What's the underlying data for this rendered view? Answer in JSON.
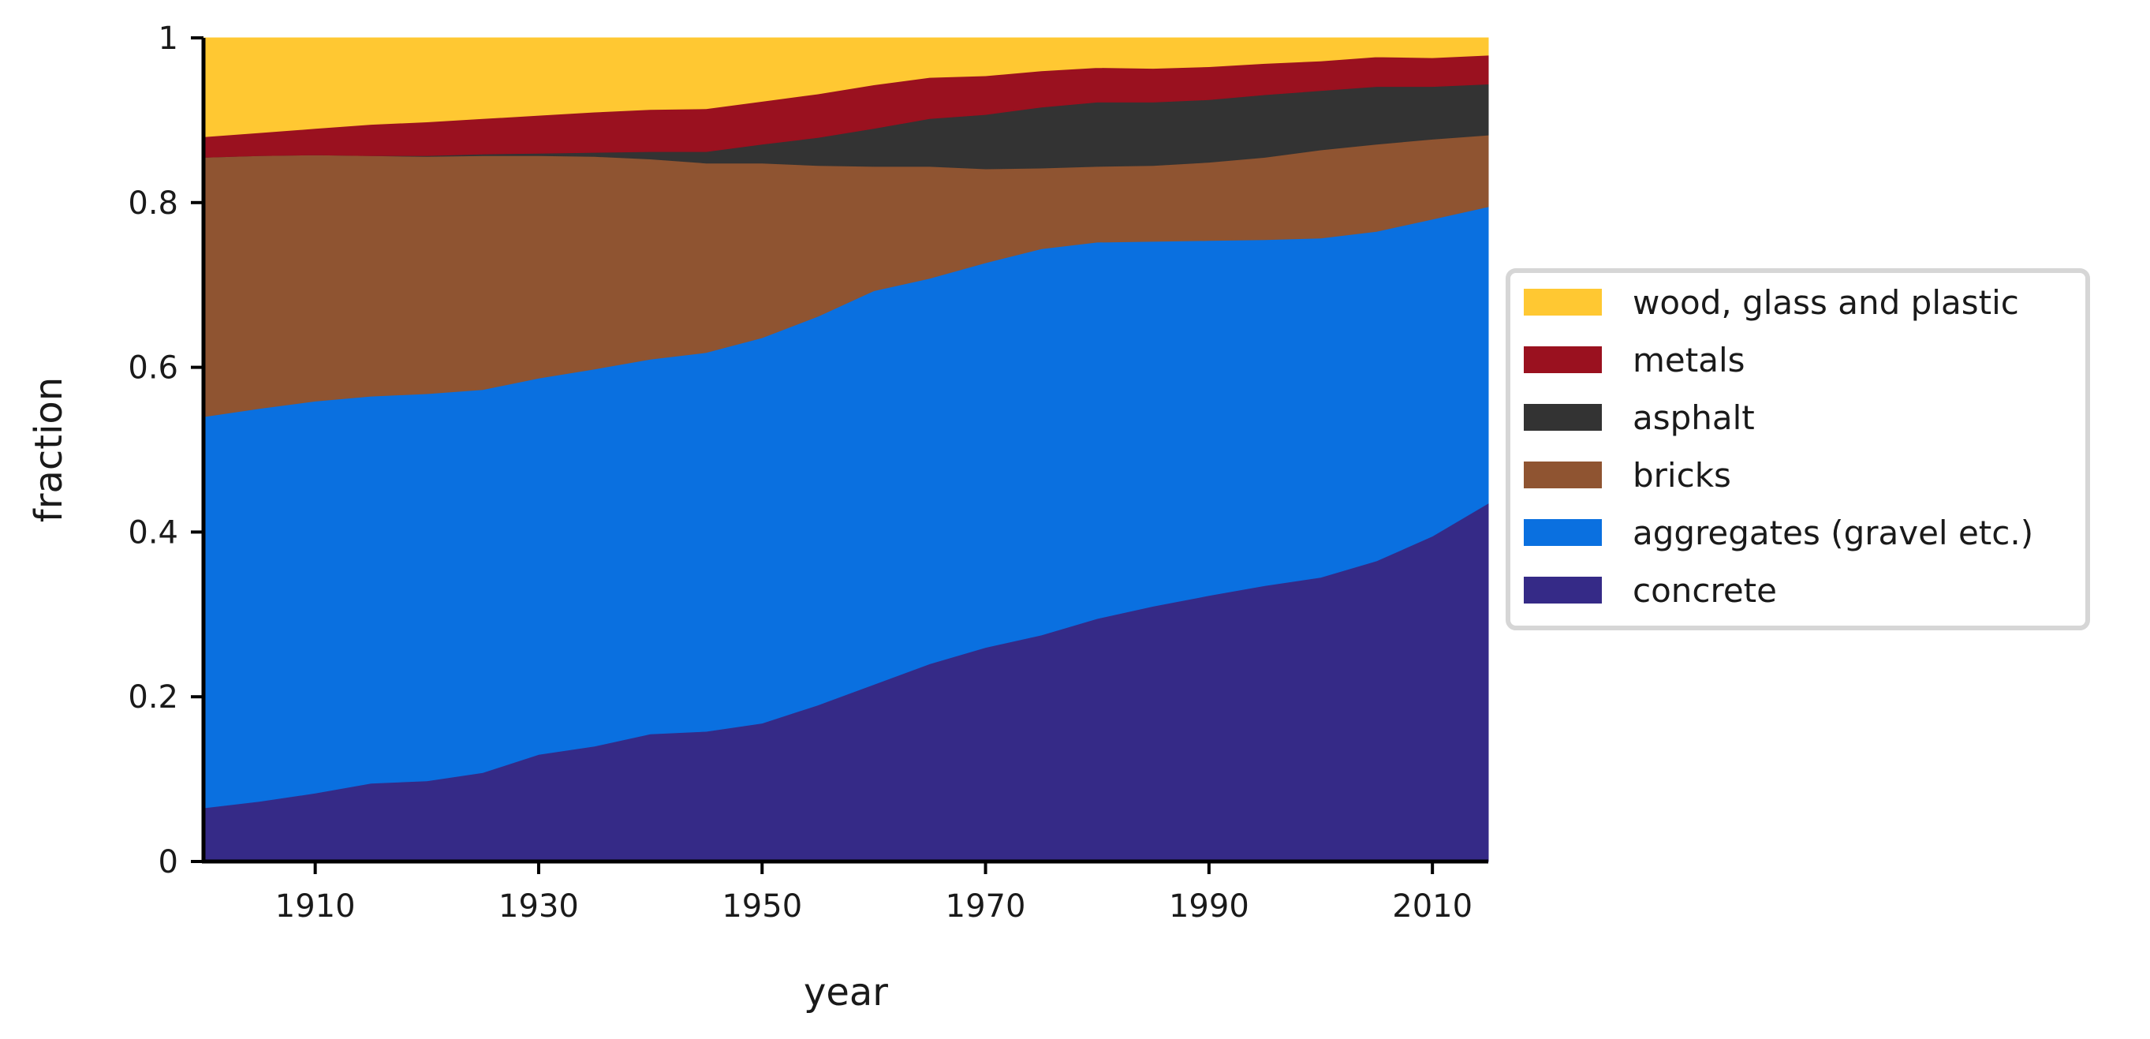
{
  "chart_data": {
    "type": "area",
    "stacked": true,
    "xlabel": "year",
    "ylabel": "fraction",
    "xlim": [
      1900,
      2015
    ],
    "ylim": [
      0,
      1
    ],
    "x_ticks": [
      1910,
      1930,
      1950,
      1970,
      1990,
      2010
    ],
    "y_ticks": [
      0,
      0.2,
      0.4,
      0.6,
      0.8,
      1
    ],
    "y_tick_labels": [
      "0",
      "0.2",
      "0.4",
      "0.6",
      "0.8",
      "1"
    ],
    "grid": false,
    "legend_position": "right",
    "x": [
      1900,
      1905,
      1910,
      1915,
      1920,
      1925,
      1930,
      1935,
      1940,
      1945,
      1950,
      1955,
      1960,
      1965,
      1970,
      1975,
      1980,
      1985,
      1990,
      1995,
      2000,
      2005,
      2010,
      2015
    ],
    "series": [
      {
        "name": "concrete",
        "color": "#352a87",
        "values": [
          0.065,
          0.073,
          0.083,
          0.095,
          0.098,
          0.108,
          0.13,
          0.14,
          0.155,
          0.158,
          0.168,
          0.19,
          0.215,
          0.24,
          0.26,
          0.275,
          0.295,
          0.31,
          0.323,
          0.335,
          0.345,
          0.365,
          0.395,
          0.435
        ]
      },
      {
        "name": "aggregates (gravel etc.)",
        "color": "#0a70e0",
        "values": [
          0.475,
          0.477,
          0.476,
          0.47,
          0.47,
          0.465,
          0.457,
          0.458,
          0.455,
          0.46,
          0.468,
          0.472,
          0.478,
          0.468,
          0.467,
          0.469,
          0.457,
          0.443,
          0.431,
          0.42,
          0.412,
          0.4,
          0.385,
          0.36
        ]
      },
      {
        "name": "bricks",
        "color": "#8f5431",
        "values": [
          0.315,
          0.307,
          0.299,
          0.292,
          0.288,
          0.284,
          0.27,
          0.258,
          0.243,
          0.23,
          0.212,
          0.183,
          0.151,
          0.136,
          0.114,
          0.098,
          0.092,
          0.092,
          0.095,
          0.1,
          0.107,
          0.106,
          0.097,
          0.087
        ]
      },
      {
        "name": "asphalt",
        "color": "#333333",
        "values": [
          0,
          0,
          0,
          0,
          0.001,
          0.002,
          0.003,
          0.005,
          0.009,
          0.014,
          0.023,
          0.034,
          0.046,
          0.058,
          0.066,
          0.074,
          0.078,
          0.077,
          0.076,
          0.076,
          0.072,
          0.07,
          0.064,
          0.062
        ]
      },
      {
        "name": "metals",
        "color": "#9a111f",
        "values": [
          0.025,
          0.028,
          0.032,
          0.038,
          0.041,
          0.043,
          0.046,
          0.049,
          0.051,
          0.052,
          0.052,
          0.053,
          0.053,
          0.05,
          0.047,
          0.044,
          0.042,
          0.041,
          0.04,
          0.038,
          0.036,
          0.036,
          0.035,
          0.035
        ]
      },
      {
        "name": "wood, glass and plastic",
        "color": "#ffc832",
        "values": [
          0.12,
          0.115,
          0.11,
          0.105,
          0.102,
          0.098,
          0.094,
          0.09,
          0.087,
          0.086,
          0.077,
          0.068,
          0.057,
          0.048,
          0.046,
          0.04,
          0.036,
          0.037,
          0.035,
          0.031,
          0.028,
          0.023,
          0.024,
          0.021
        ]
      }
    ],
    "legend_order": [
      "wood, glass and plastic",
      "metals",
      "asphalt",
      "bricks",
      "aggregates (gravel etc.)",
      "concrete"
    ]
  }
}
